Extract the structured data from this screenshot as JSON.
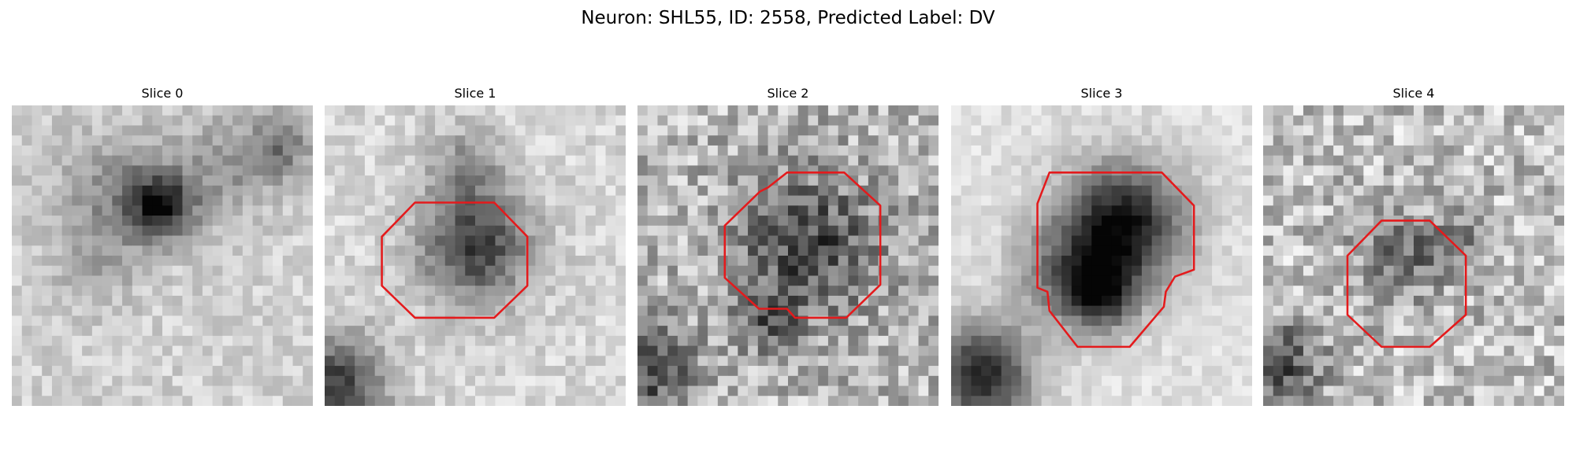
{
  "title": "Neuron: SHL55, ID: 2558, Predicted Label: DV",
  "panels": [
    {
      "title": "Slice 0"
    },
    {
      "title": "Slice 1"
    },
    {
      "title": "Slice 2"
    },
    {
      "title": "Slice 3"
    },
    {
      "title": "Slice 4"
    }
  ]
}
